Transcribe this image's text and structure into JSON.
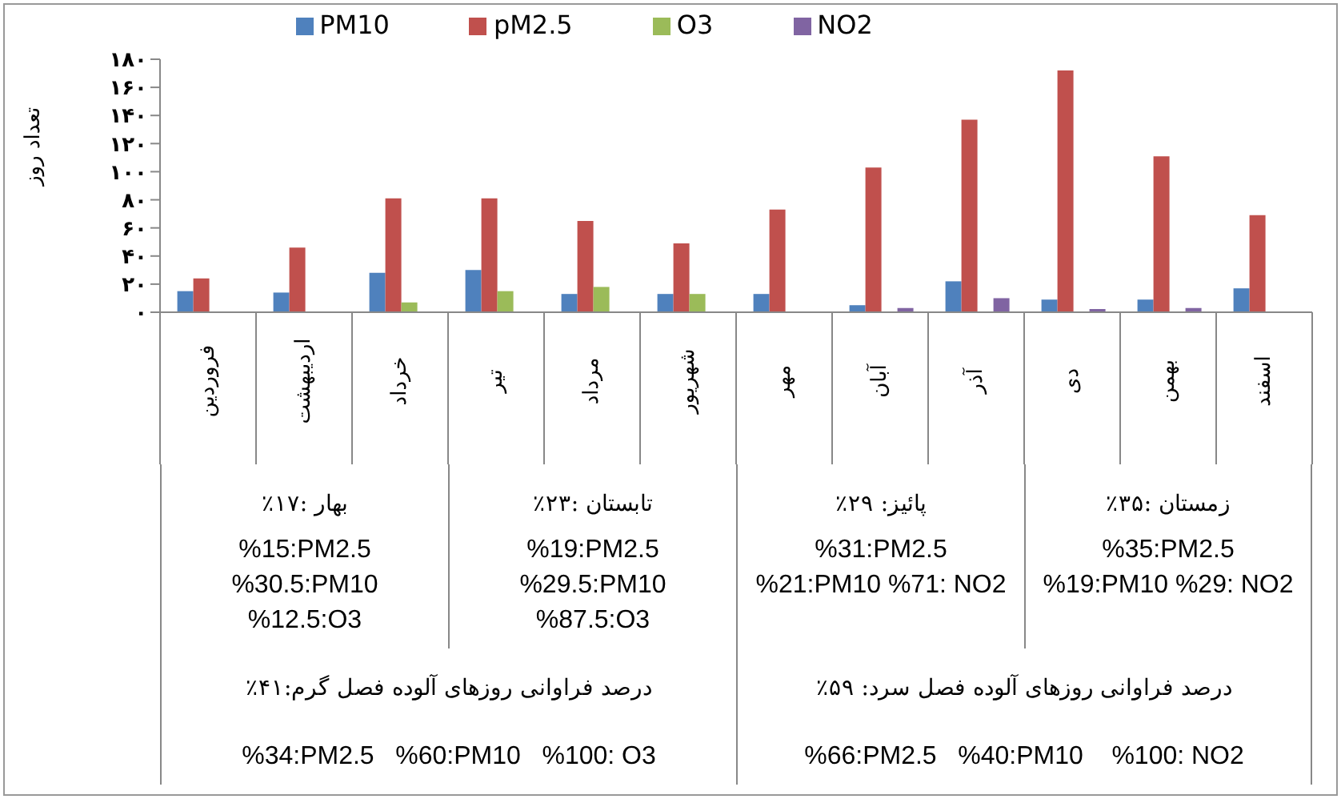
{
  "chart_data": {
    "type": "bar",
    "ylabel": "تعداد روز",
    "categories": [
      "فروردین",
      "اردیبهشت",
      "خرداد",
      "تیر",
      "مرداد",
      "شهریور",
      "مهر",
      "آبان",
      "آذر",
      "دی",
      "بهمن",
      "اسفند"
    ],
    "series": [
      {
        "name": "PM10",
        "color": "#4f81bd",
        "values": [
          15,
          14,
          28,
          30,
          13,
          13,
          13,
          5,
          22,
          9,
          9,
          17
        ]
      },
      {
        "name": "pM2.5",
        "color": "#c0504d",
        "values": [
          24,
          46,
          81,
          81,
          65,
          49,
          73,
          103,
          137,
          172,
          111,
          69
        ]
      },
      {
        "name": "O3",
        "color": "#9bbb59",
        "values": [
          0,
          0,
          7,
          15,
          18,
          13,
          0,
          0,
          0,
          0,
          0,
          0
        ]
      },
      {
        "name": "NO2",
        "color": "#8064a2",
        "values": [
          0,
          0,
          0,
          0,
          0,
          0,
          0,
          3,
          10,
          2,
          3,
          0
        ]
      }
    ],
    "ylim": [
      0,
      180
    ],
    "yticks": [
      {
        "value": 0,
        "label": "۰"
      },
      {
        "value": 20,
        "label": "۲۰"
      },
      {
        "value": 40,
        "label": "۴۰"
      },
      {
        "value": 60,
        "label": "۶۰"
      },
      {
        "value": 80,
        "label": "۸۰"
      },
      {
        "value": 100,
        "label": "۱۰۰"
      },
      {
        "value": 120,
        "label": "۱۲۰"
      },
      {
        "value": 140,
        "label": "۱۴۰"
      },
      {
        "value": 160,
        "label": "۱۶۰"
      },
      {
        "value": 180,
        "label": "۱۸۰"
      }
    ],
    "legend": "top",
    "grid": false,
    "annotations": [
      "بهار :۱۷٪",
      "تابستان :۲۳٪",
      "پائیز: ۲۹٪",
      "زمستان :۳۵٪",
      "%15:PM2.5\n%30.5:PM10\n%12.5:O3",
      "%19:PM2.5\n%29.5:PM10\n%87.5:O3",
      "%31:PM2.5\n%21:PM10   %71: NO2",
      "%35:PM2.5\n%19:PM10     %29: NO2",
      "درصد فراوانی روزهای آلوده فصل گرم:۴۱٪",
      "درصد فراوانی روزهای آلوده فصل سرد: ۵۹٪",
      "%34:PM2.5   %60:PM10   %100: O3",
      "%66:PM2.5   %40:PM10    %100: NO2"
    ]
  }
}
